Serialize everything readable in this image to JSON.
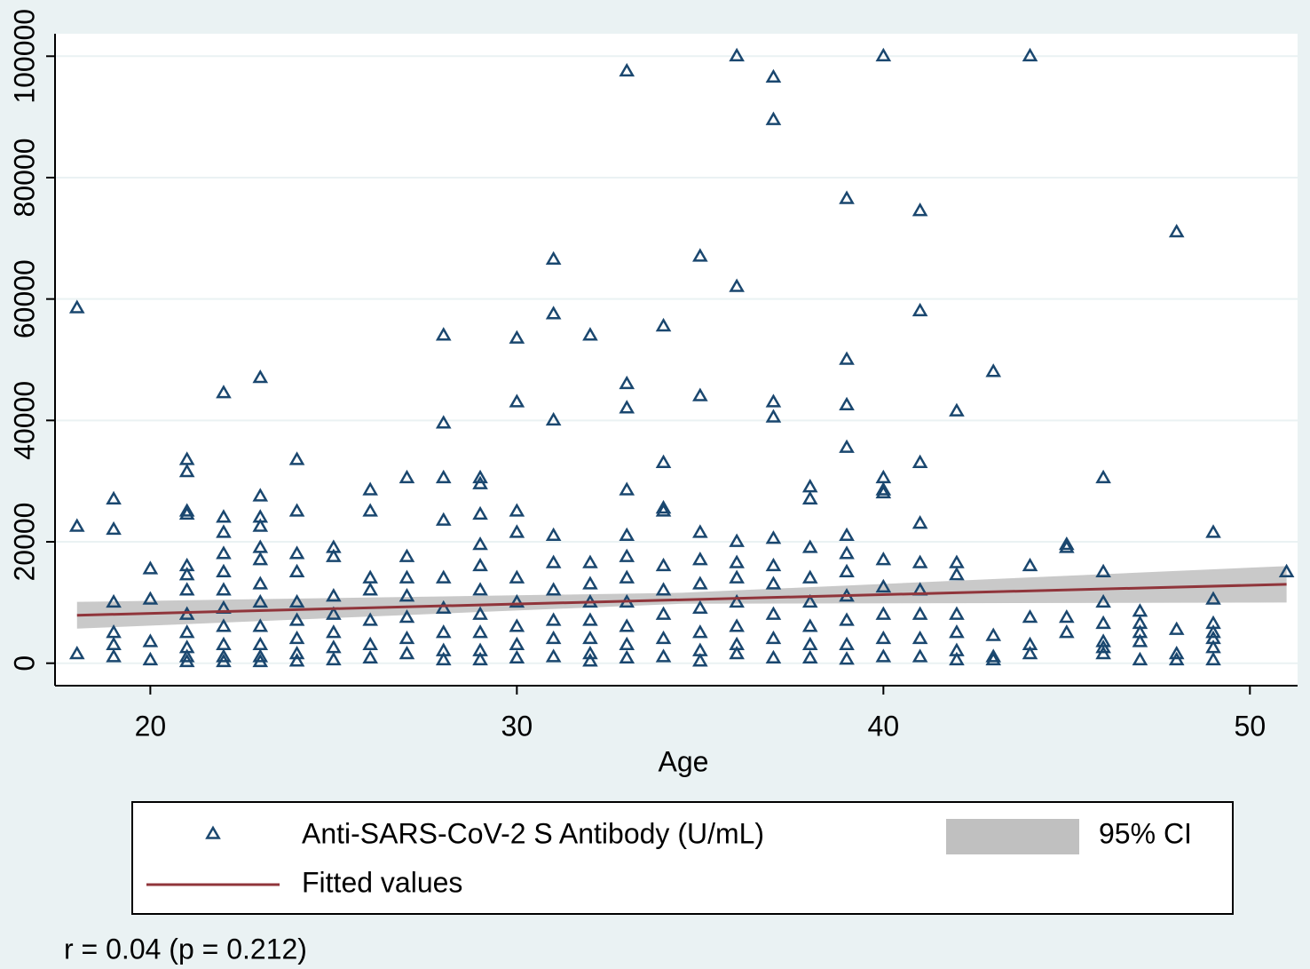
{
  "chart_data": {
    "type": "scatter",
    "xlabel": "Age",
    "annotation": "r = 0.04 (p = 0.212)",
    "xlim": [
      17.4,
      51.3
    ],
    "ylim": [
      -3700,
      103700
    ],
    "xticks": [
      20,
      30,
      40,
      50
    ],
    "yticks": [
      0,
      20000,
      40000,
      60000,
      80000,
      100000
    ],
    "grid": true,
    "series": [
      {
        "name": "Anti-SARS-CoV-2 S Antibody (U/mL)",
        "type": "scatter",
        "color": "#1a476f",
        "x": [
          18,
          18,
          18,
          19,
          19,
          19,
          19,
          19,
          19,
          20,
          20,
          20,
          20,
          21,
          21,
          21,
          21,
          21,
          21,
          21,
          21,
          21,
          21,
          21,
          21,
          22,
          22,
          22,
          22,
          22,
          22,
          22,
          22,
          22,
          22,
          22,
          23,
          23,
          23,
          23,
          23,
          23,
          23,
          23,
          23,
          23,
          23,
          23,
          24,
          24,
          24,
          24,
          24,
          24,
          24,
          24,
          24,
          25,
          25,
          25,
          25,
          25,
          25,
          25,
          26,
          26,
          26,
          26,
          26,
          26,
          26,
          27,
          27,
          27,
          27,
          27,
          27,
          27,
          28,
          28,
          28,
          28,
          28,
          28,
          28,
          28,
          28,
          29,
          29,
          29,
          29,
          29,
          29,
          29,
          29,
          29,
          29,
          30,
          30,
          30,
          30,
          30,
          30,
          30,
          30,
          30,
          31,
          31,
          31,
          31,
          31,
          31,
          31,
          31,
          31,
          32,
          32,
          32,
          32,
          32,
          32,
          32,
          32,
          33,
          33,
          33,
          33,
          33,
          33,
          33,
          33,
          33,
          33,
          33,
          34,
          34,
          34,
          34,
          34,
          34,
          34,
          34,
          34,
          35,
          35,
          35,
          35,
          35,
          35,
          35,
          35,
          35,
          36,
          36,
          36,
          36,
          36,
          36,
          36,
          36,
          36,
          37,
          37,
          37,
          37,
          37,
          37,
          37,
          37,
          37,
          37,
          38,
          38,
          38,
          38,
          38,
          38,
          38,
          38,
          39,
          39,
          39,
          39,
          39,
          39,
          39,
          39,
          39,
          39,
          39,
          40,
          40,
          40,
          40,
          40,
          40,
          40,
          40,
          40,
          41,
          41,
          41,
          41,
          41,
          41,
          41,
          41,
          41,
          42,
          42,
          42,
          42,
          42,
          42,
          42,
          43,
          43,
          43,
          43,
          44,
          44,
          44,
          44,
          44,
          45,
          45,
          45,
          45,
          46,
          46,
          46,
          46,
          46,
          46,
          46,
          47,
          47,
          47,
          47,
          47,
          48,
          48,
          48,
          48,
          49,
          49,
          49,
          49,
          49,
          49,
          49,
          51
        ],
        "values": [
          58500,
          22500,
          1500,
          27000,
          22000,
          10000,
          5000,
          3000,
          1000,
          15500,
          10500,
          3500,
          500,
          33500,
          31500,
          25000,
          24500,
          16000,
          14500,
          12000,
          8000,
          5000,
          2500,
          1000,
          200,
          44500,
          24000,
          21500,
          18000,
          15000,
          12000,
          9000,
          6000,
          3000,
          1000,
          200,
          47000,
          27500,
          24000,
          22500,
          19000,
          17000,
          13000,
          10000,
          6000,
          3000,
          1000,
          200,
          33500,
          25000,
          18000,
          15000,
          10000,
          7000,
          4000,
          1500,
          300,
          19000,
          17500,
          11000,
          8000,
          5000,
          2500,
          500,
          28500,
          25000,
          14000,
          12000,
          7000,
          3000,
          800,
          30500,
          17500,
          14000,
          11000,
          7500,
          4000,
          1500,
          54000,
          39500,
          30500,
          23500,
          14000,
          9000,
          5000,
          2000,
          500,
          30500,
          29500,
          24500,
          19500,
          16000,
          12000,
          8000,
          5000,
          2000,
          500,
          53500,
          43000,
          25000,
          21500,
          14000,
          10000,
          6000,
          3000,
          800,
          66500,
          57500,
          40000,
          21000,
          16500,
          12000,
          7000,
          4000,
          1000,
          54000,
          16500,
          13000,
          10000,
          7000,
          4000,
          1500,
          300,
          97500,
          46000,
          42000,
          28500,
          21000,
          17500,
          14000,
          10000,
          6000,
          3000,
          800,
          55500,
          33000,
          25500,
          25000,
          16000,
          12000,
          8000,
          4000,
          1000,
          67000,
          44000,
          21500,
          17000,
          13000,
          9000,
          5000,
          2000,
          300,
          100000,
          62000,
          20000,
          16500,
          14000,
          10000,
          6000,
          3000,
          1500,
          96500,
          89500,
          43000,
          40500,
          20500,
          16000,
          13000,
          8000,
          4000,
          800,
          29000,
          27000,
          19000,
          14000,
          10000,
          6000,
          3000,
          800,
          76500,
          50000,
          42500,
          35500,
          21000,
          18000,
          15000,
          11000,
          7000,
          3000,
          600,
          100000,
          30500,
          28500,
          28000,
          17000,
          12500,
          8000,
          4000,
          1000,
          74500,
          58000,
          33000,
          23000,
          16500,
          12000,
          8000,
          4000,
          1000,
          41500,
          16500,
          14500,
          8000,
          5000,
          2000,
          500,
          48000,
          4500,
          1000,
          500,
          100000,
          16000,
          7500,
          3000,
          1500,
          19500,
          19000,
          7500,
          5000,
          30500,
          15000,
          10000,
          6500,
          3500,
          2500,
          1500,
          8500,
          6500,
          5000,
          3500,
          500,
          71000,
          5500,
          1500,
          500,
          21500,
          10500,
          6500,
          5000,
          4000,
          2500,
          500,
          15000
        ]
      },
      {
        "name": "Fitted values",
        "type": "line",
        "color": "#90353b",
        "x": [
          18,
          51
        ],
        "values": [
          7900,
          13000
        ]
      },
      {
        "name": "95% CI",
        "type": "band",
        "color": "#c0c0c0",
        "x": [
          18,
          34.5,
          51
        ],
        "lower": [
          5700,
          9800,
          10000
        ],
        "upper": [
          10100,
          11600,
          16000
        ]
      }
    ]
  }
}
